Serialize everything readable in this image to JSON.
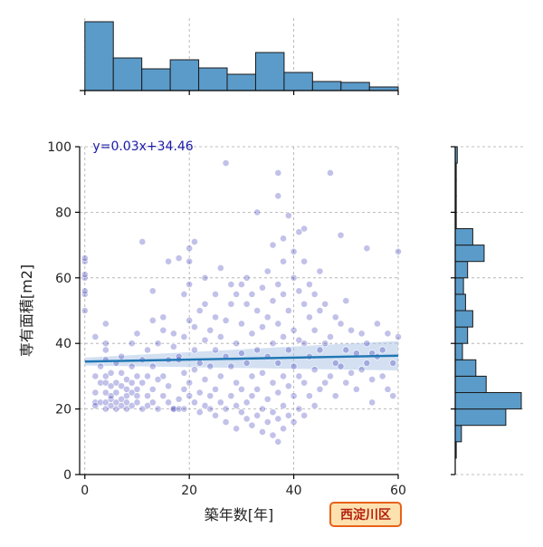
{
  "chart_data": {
    "type": "scatter",
    "xlabel": "築年数[年]",
    "ylabel": "専有面積[m2]",
    "xlim": [
      -1,
      60
    ],
    "ylim": [
      0,
      100
    ],
    "x_ticks": [
      0,
      20,
      40,
      60
    ],
    "y_ticks": [
      0,
      20,
      40,
      60,
      80,
      100
    ],
    "grid": true,
    "annotation": "y=0.03x+34.46",
    "regression": {
      "slope": 0.03,
      "intercept": 34.46,
      "color": "#1f77b4",
      "band_color": "#aec7e8"
    },
    "point_color": "#2020b0",
    "district_badge": "西淀川区",
    "points": [
      [
        0,
        65
      ],
      [
        0,
        66
      ],
      [
        0,
        60
      ],
      [
        0,
        61
      ],
      [
        0,
        55
      ],
      [
        0,
        56
      ],
      [
        0,
        50
      ],
      [
        2,
        42
      ],
      [
        2,
        22
      ],
      [
        2,
        21
      ],
      [
        2,
        25
      ],
      [
        2,
        30
      ],
      [
        3,
        28
      ],
      [
        3,
        22
      ],
      [
        3,
        33
      ],
      [
        4,
        38
      ],
      [
        4,
        46
      ],
      [
        4,
        40
      ],
      [
        4,
        22
      ],
      [
        4,
        20
      ],
      [
        4,
        25
      ],
      [
        4,
        28
      ],
      [
        4,
        30
      ],
      [
        4,
        35
      ],
      [
        5,
        21
      ],
      [
        5,
        23
      ],
      [
        5,
        27
      ],
      [
        5,
        31
      ],
      [
        5,
        24
      ],
      [
        6,
        22
      ],
      [
        6,
        28
      ],
      [
        6,
        20
      ],
      [
        6,
        34
      ],
      [
        6,
        25
      ],
      [
        7,
        21
      ],
      [
        7,
        27
      ],
      [
        7,
        23
      ],
      [
        7,
        31
      ],
      [
        7,
        36
      ],
      [
        8,
        26
      ],
      [
        8,
        22
      ],
      [
        8,
        29
      ],
      [
        8,
        20
      ],
      [
        8,
        24
      ],
      [
        9,
        21
      ],
      [
        9,
        25
      ],
      [
        9,
        33
      ],
      [
        9,
        28
      ],
      [
        9,
        40
      ],
      [
        10,
        22
      ],
      [
        10,
        26
      ],
      [
        10,
        43
      ],
      [
        10,
        30
      ],
      [
        10,
        24
      ],
      [
        11,
        20
      ],
      [
        11,
        35
      ],
      [
        11,
        28
      ],
      [
        11,
        71
      ],
      [
        12,
        24
      ],
      [
        12,
        30
      ],
      [
        12,
        21
      ],
      [
        12,
        38
      ],
      [
        13,
        26
      ],
      [
        13,
        47
      ],
      [
        13,
        22
      ],
      [
        13,
        33
      ],
      [
        13,
        56
      ],
      [
        14,
        40
      ],
      [
        14,
        20
      ],
      [
        14,
        29
      ],
      [
        15,
        24
      ],
      [
        15,
        30
      ],
      [
        15,
        44
      ],
      [
        15,
        48
      ],
      [
        16,
        22
      ],
      [
        16,
        35
      ],
      [
        16,
        27
      ],
      [
        16,
        65
      ],
      [
        17,
        20
      ],
      [
        17,
        39
      ],
      [
        17,
        43
      ],
      [
        17,
        20
      ],
      [
        18,
        20
      ],
      [
        18,
        23
      ],
      [
        18,
        35
      ],
      [
        18,
        66
      ],
      [
        18,
        36
      ],
      [
        19,
        20
      ],
      [
        19,
        26
      ],
      [
        19,
        31
      ],
      [
        19,
        42
      ],
      [
        19,
        55
      ],
      [
        20,
        24
      ],
      [
        20,
        28
      ],
      [
        20,
        47
      ],
      [
        20,
        58
      ],
      [
        20,
        65
      ],
      [
        20,
        69
      ],
      [
        21,
        71
      ],
      [
        21,
        45
      ],
      [
        21,
        32
      ],
      [
        21,
        22
      ],
      [
        21,
        38
      ],
      [
        22,
        25
      ],
      [
        22,
        34
      ],
      [
        22,
        50
      ],
      [
        22,
        19
      ],
      [
        23,
        21
      ],
      [
        23,
        29
      ],
      [
        23,
        41
      ],
      [
        23,
        52
      ],
      [
        23,
        60
      ],
      [
        24,
        24
      ],
      [
        24,
        33
      ],
      [
        24,
        44
      ],
      [
        24,
        20
      ],
      [
        25,
        26
      ],
      [
        25,
        38
      ],
      [
        25,
        48
      ],
      [
        25,
        55
      ],
      [
        25,
        18
      ],
      [
        26,
        22
      ],
      [
        26,
        30
      ],
      [
        26,
        42
      ],
      [
        26,
        63
      ],
      [
        27,
        20
      ],
      [
        27,
        36
      ],
      [
        27,
        47
      ],
      [
        27,
        95
      ],
      [
        27,
        16
      ],
      [
        28,
        24
      ],
      [
        28,
        33
      ],
      [
        28,
        52
      ],
      [
        28,
        58
      ],
      [
        29,
        21
      ],
      [
        29,
        28
      ],
      [
        29,
        40
      ],
      [
        29,
        55
      ],
      [
        29,
        14
      ],
      [
        30,
        19
      ],
      [
        30,
        26
      ],
      [
        30,
        37
      ],
      [
        30,
        46
      ],
      [
        30,
        58
      ],
      [
        31,
        17
      ],
      [
        31,
        22
      ],
      [
        31,
        34
      ],
      [
        31,
        52
      ],
      [
        31,
        60
      ],
      [
        32,
        15
      ],
      [
        32,
        24
      ],
      [
        32,
        30
      ],
      [
        32,
        43
      ],
      [
        32,
        55
      ],
      [
        33,
        18
      ],
      [
        33,
        26
      ],
      [
        33,
        38
      ],
      [
        33,
        50
      ],
      [
        33,
        80
      ],
      [
        34,
        13
      ],
      [
        34,
        20
      ],
      [
        34,
        31
      ],
      [
        34,
        45
      ],
      [
        34,
        57
      ],
      [
        35,
        16
      ],
      [
        35,
        23
      ],
      [
        35,
        36
      ],
      [
        35,
        48
      ],
      [
        35,
        62
      ],
      [
        36,
        12
      ],
      [
        36,
        19
      ],
      [
        36,
        28
      ],
      [
        36,
        40
      ],
      [
        36,
        53
      ],
      [
        36,
        70
      ],
      [
        37,
        10
      ],
      [
        37,
        17
      ],
      [
        37,
        25
      ],
      [
        37,
        34
      ],
      [
        37,
        46
      ],
      [
        37,
        58
      ],
      [
        37,
        85
      ],
      [
        37,
        92
      ],
      [
        38,
        14
      ],
      [
        38,
        21
      ],
      [
        38,
        30
      ],
      [
        38,
        42
      ],
      [
        38,
        55
      ],
      [
        38,
        65
      ],
      [
        38,
        72
      ],
      [
        39,
        18
      ],
      [
        39,
        27
      ],
      [
        39,
        38
      ],
      [
        39,
        50
      ],
      [
        39,
        79
      ],
      [
        40,
        16
      ],
      [
        40,
        24
      ],
      [
        40,
        33
      ],
      [
        40,
        44
      ],
      [
        40,
        60
      ],
      [
        40,
        68
      ],
      [
        41,
        20
      ],
      [
        41,
        30
      ],
      [
        41,
        41
      ],
      [
        41,
        56
      ],
      [
        41,
        74
      ],
      [
        42,
        18
      ],
      [
        42,
        28
      ],
      [
        42,
        40
      ],
      [
        42,
        52
      ],
      [
        42,
        65
      ],
      [
        42,
        75
      ],
      [
        43,
        24
      ],
      [
        43,
        36
      ],
      [
        43,
        48
      ],
      [
        43,
        58
      ],
      [
        44,
        21
      ],
      [
        44,
        32
      ],
      [
        44,
        44
      ],
      [
        44,
        55
      ],
      [
        45,
        26
      ],
      [
        45,
        38
      ],
      [
        45,
        50
      ],
      [
        45,
        62
      ],
      [
        46,
        28
      ],
      [
        46,
        40
      ],
      [
        46,
        52
      ],
      [
        47,
        30
      ],
      [
        47,
        42
      ],
      [
        47,
        92
      ],
      [
        48,
        24
      ],
      [
        48,
        34
      ],
      [
        48,
        48
      ],
      [
        49,
        33
      ],
      [
        49,
        46
      ],
      [
        49,
        73
      ],
      [
        50,
        28
      ],
      [
        50,
        38
      ],
      [
        50,
        53
      ],
      [
        51,
        31
      ],
      [
        51,
        44
      ],
      [
        52,
        26
      ],
      [
        52,
        37
      ],
      [
        53,
        32
      ],
      [
        53,
        43
      ],
      [
        54,
        34
      ],
      [
        54,
        40
      ],
      [
        54,
        69
      ],
      [
        55,
        29
      ],
      [
        55,
        37
      ],
      [
        55,
        22
      ],
      [
        56,
        36
      ],
      [
        56,
        46
      ],
      [
        57,
        30
      ],
      [
        57,
        38
      ],
      [
        58,
        26
      ],
      [
        58,
        43
      ],
      [
        59,
        24
      ],
      [
        59,
        34
      ],
      [
        60,
        68
      ],
      [
        60,
        42
      ]
    ],
    "marginal_x_hist": {
      "bins": [
        0,
        5.45,
        10.9,
        16.35,
        21.8,
        27.25,
        32.7,
        38.15,
        43.6,
        49.05,
        54.5,
        60
      ],
      "counts": [
        76,
        36,
        24,
        34,
        25,
        18,
        42,
        20,
        10,
        9,
        4
      ]
    },
    "marginal_y_hist": {
      "bins": [
        0,
        5,
        10,
        15,
        20,
        25,
        30,
        35,
        40,
        45,
        50,
        55,
        60,
        65,
        70,
        75,
        80,
        85,
        90,
        95,
        100
      ],
      "counts": [
        0,
        1,
        6,
        49,
        64,
        30,
        20,
        7,
        12,
        17,
        10,
        8,
        12,
        28,
        17,
        1,
        1,
        1,
        1,
        2
      ]
    }
  }
}
